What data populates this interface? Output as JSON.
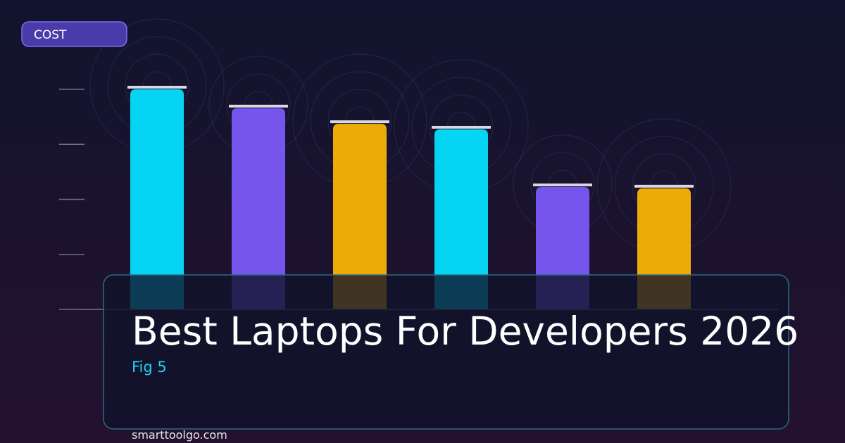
{
  "chart_data": {
    "type": "bar",
    "title": "Best Laptops For Developers 2026",
    "subtitle": "Fig 5",
    "y_label": "COST",
    "source": "smarttoolgo.com",
    "categories": [
      null,
      null,
      null,
      null,
      null,
      null
    ],
    "values": [
      100,
      91.4,
      84.3,
      81.8,
      55.6,
      55
    ],
    "colors": [
      "#05d5f2",
      "#7655ec",
      "#ecab07",
      "#05d5f2",
      "#7655ec",
      "#ecab07"
    ],
    "ylim": [
      0,
      100
    ],
    "yticks": [
      0,
      25,
      50,
      75,
      100
    ]
  }
}
